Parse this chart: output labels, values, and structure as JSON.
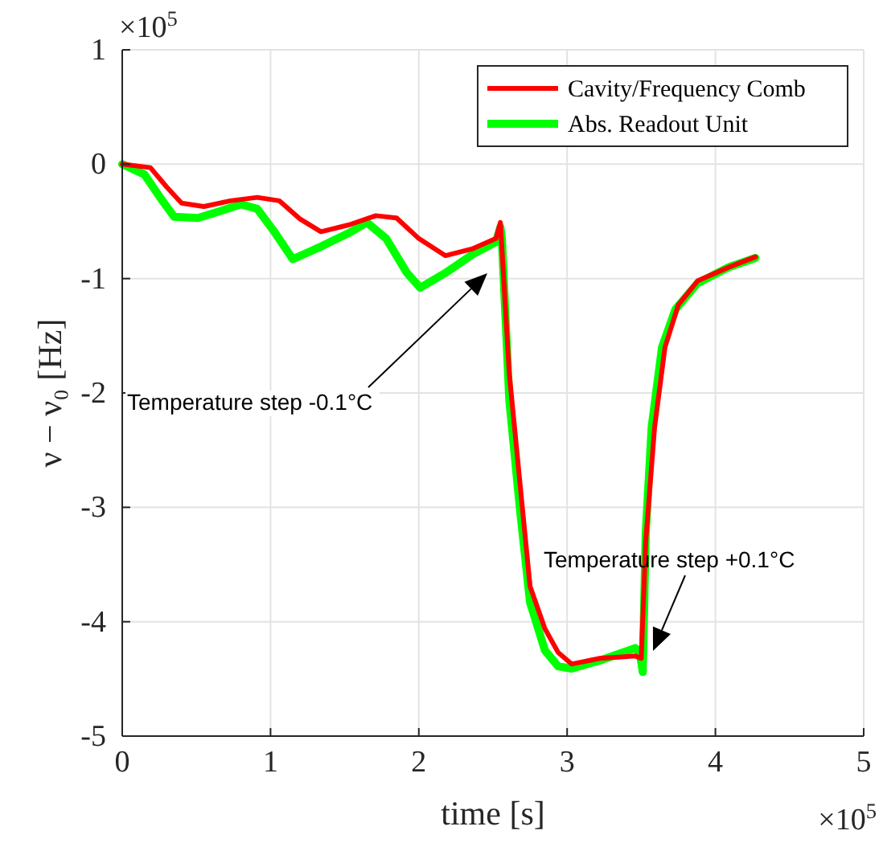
{
  "chart_data": {
    "type": "line",
    "xlabel": "time [s]",
    "ylabel": "ν − ν₀ [Hz]",
    "xlim": [
      0,
      5
    ],
    "ylim": [
      -5,
      1
    ],
    "xticks": [
      0,
      1,
      2,
      3,
      4,
      5
    ],
    "yticks": [
      -5,
      -4,
      -3,
      -2,
      -1,
      0,
      1
    ],
    "grid": true,
    "legend": "top right",
    "line_style": "solid",
    "marker": "none",
    "series": [
      {
        "name": "Cavity/Frequency Comb",
        "color": "#ff0000",
        "x": [
          0,
          0.19,
          0.3,
          0.4,
          0.55,
          0.73,
          0.91,
          1.06,
          1.2,
          1.34,
          1.53,
          1.71,
          1.85,
          2.0,
          2.18,
          2.36,
          2.52,
          2.55,
          2.61,
          2.68,
          2.75,
          2.85,
          2.94,
          3.03,
          3.22,
          3.46,
          3.5,
          3.53,
          3.59,
          3.66,
          3.75,
          3.88,
          4.09,
          4.27
        ],
        "values": [
          0,
          -0.03,
          -0.2,
          -0.34,
          -0.37,
          -0.32,
          -0.29,
          -0.32,
          -0.48,
          -0.59,
          -0.53,
          -0.45,
          -0.47,
          -0.65,
          -0.8,
          -0.74,
          -0.65,
          -0.51,
          -1.83,
          -2.76,
          -3.69,
          -4.06,
          -4.27,
          -4.37,
          -4.32,
          -4.3,
          -4.32,
          -3.3,
          -2.3,
          -1.6,
          -1.23,
          -1.02,
          -0.9,
          -0.81
        ]
      },
      {
        "name": "Abs. Readout Unit",
        "color": "#00ff00",
        "x": [
          0,
          0.15,
          0.26,
          0.35,
          0.51,
          0.66,
          0.8,
          0.91,
          1.02,
          1.15,
          1.34,
          1.53,
          1.65,
          1.78,
          1.92,
          2.01,
          2.18,
          2.36,
          2.52,
          2.55,
          2.56,
          2.61,
          2.68,
          2.75,
          2.85,
          2.94,
          3.03,
          3.22,
          3.46,
          3.49,
          3.51,
          3.53,
          3.57,
          3.64,
          3.73,
          3.88,
          4.09,
          4.27
        ],
        "values": [
          0,
          -0.09,
          -0.3,
          -0.46,
          -0.47,
          -0.41,
          -0.35,
          -0.39,
          -0.58,
          -0.83,
          -0.72,
          -0.6,
          -0.51,
          -0.65,
          -0.95,
          -1.08,
          -0.95,
          -0.79,
          -0.68,
          -0.55,
          -0.65,
          -2.06,
          -2.99,
          -3.83,
          -4.25,
          -4.39,
          -4.41,
          -4.34,
          -4.23,
          -4.27,
          -4.44,
          -3.23,
          -2.3,
          -1.6,
          -1.27,
          -1.04,
          -0.9,
          -0.82
        ]
      }
    ],
    "annotations": [
      "×10$^{5}$",
      "×10$^{5}$",
      "Temperature step -0.1°C",
      "Temperature step +0.1°C"
    ]
  }
}
